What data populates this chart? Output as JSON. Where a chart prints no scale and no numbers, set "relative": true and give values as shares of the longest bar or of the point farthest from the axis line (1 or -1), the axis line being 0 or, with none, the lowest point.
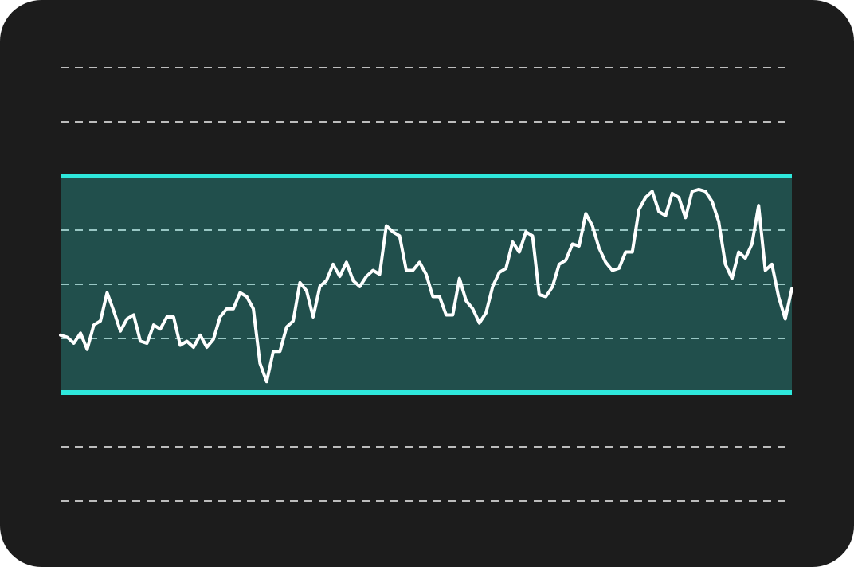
{
  "chart_data": {
    "type": "line",
    "relative": true,
    "grid": "y",
    "marker": "none",
    "line_style": "solid",
    "categories": [
      null,
      null,
      null,
      null,
      null,
      null,
      null,
      null,
      null,
      null,
      null,
      null,
      null,
      null,
      null,
      null,
      null,
      null,
      null,
      null,
      null,
      null,
      null,
      null,
      null,
      null,
      null,
      null,
      null,
      null,
      null,
      null,
      null,
      null,
      null,
      null,
      null,
      null,
      null,
      null,
      null,
      null,
      null,
      null,
      null,
      null,
      null,
      null,
      null,
      null,
      null,
      null,
      null,
      null,
      null,
      null,
      null,
      null,
      null,
      null,
      null,
      null,
      null,
      null,
      null,
      null,
      null,
      null,
      null,
      null,
      null,
      null,
      null,
      null,
      null,
      null,
      null,
      null,
      null,
      null,
      null,
      null,
      null,
      null,
      null,
      null,
      null,
      null,
      null,
      null,
      null,
      null,
      null,
      null,
      null,
      null,
      null,
      null,
      null,
      null,
      null,
      null,
      null,
      null,
      null,
      null,
      null,
      null,
      null,
      null,
      null
    ],
    "series": [
      {
        "color": "#ffffff",
        "values": [
          0.28,
          0.27,
          0.24,
          0.29,
          0.21,
          0.33,
          0.35,
          0.49,
          0.4,
          0.3,
          0.36,
          0.38,
          0.25,
          0.24,
          0.33,
          0.31,
          0.37,
          0.37,
          0.23,
          0.25,
          0.22,
          0.28,
          0.22,
          0.26,
          0.37,
          0.41,
          0.41,
          0.49,
          0.47,
          0.41,
          0.14,
          0.05,
          0.2,
          0.2,
          0.32,
          0.35,
          0.54,
          0.5,
          0.37,
          0.52,
          0.55,
          0.63,
          0.57,
          0.64,
          0.55,
          0.52,
          0.57,
          0.6,
          0.58,
          0.82,
          0.79,
          0.77,
          0.6,
          0.6,
          0.64,
          0.58,
          0.47,
          0.47,
          0.38,
          0.38,
          0.56,
          0.45,
          0.41,
          0.34,
          0.39,
          0.52,
          0.59,
          0.61,
          0.74,
          0.69,
          0.79,
          0.77,
          0.48,
          0.47,
          0.52,
          0.63,
          0.65,
          0.73,
          0.72,
          0.88,
          0.82,
          0.71,
          0.64,
          0.6,
          0.61,
          0.69,
          0.69,
          0.9,
          0.96,
          0.99,
          0.89,
          0.87,
          0.98,
          0.96,
          0.86,
          0.99,
          1,
          0.99,
          0.94,
          0.84,
          0.63,
          0.56,
          0.69,
          0.66,
          0.73,
          0.92,
          0.6,
          0.63,
          0.47,
          0.36,
          0.51
        ]
      }
    ],
    "bands": [
      {
        "axis": "y",
        "from": 0,
        "to": 1.07,
        "color": "#2ee8dc"
      }
    ]
  }
}
